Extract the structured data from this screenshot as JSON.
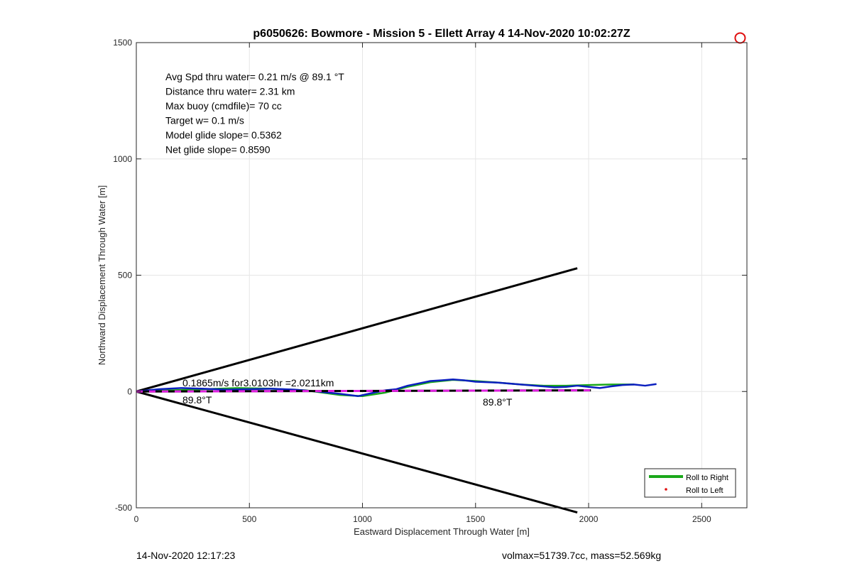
{
  "chart_data": {
    "type": "line",
    "title": "p6050626: Bowmore - Mission 5 - Ellett Array 4 14-Nov-2020 10:02:27Z",
    "xlabel": "Eastward Displacement Through Water [m]",
    "ylabel": "Northward Displacement Through Water [m]",
    "xlim": [
      0,
      2700
    ],
    "ylim": [
      -500,
      1500
    ],
    "xticks": [
      0,
      500,
      1000,
      1500,
      2000,
      2500
    ],
    "yticks": [
      -500,
      0,
      500,
      1000,
      1500
    ],
    "grid": true,
    "annotations": [
      "Avg Spd thru water=  0.21 m/s @  89.1 °T",
      "Distance thru water=  2.31 km",
      "Max buoy (cmdfile)= 70 cc",
      "Target w= 0.1 m/s",
      "Model glide slope= 0.5362",
      "Net glide slope= 0.8590"
    ],
    "segment_label": "0.1865m/s for3.0103hr =2.0211km",
    "heading_label_left": "89.8°T",
    "heading_label_right": "89.8°T",
    "legend": {
      "position": "bottom-right",
      "entries": [
        "Roll to Right",
        "Roll to Left"
      ]
    },
    "glide_cone": {
      "upper": [
        [
          0,
          0
        ],
        [
          1950,
          530
        ]
      ],
      "lower": [
        [
          0,
          0
        ],
        [
          1950,
          -520
        ]
      ]
    },
    "reference_line": [
      [
        0,
        0
      ],
      [
        2010,
        5
      ]
    ],
    "series": [
      {
        "name": "Roll to Right",
        "color": "#1aa81a",
        "x": [
          0,
          150,
          300,
          450,
          600,
          750,
          900,
          1000,
          1100,
          1200,
          1300,
          1400,
          1500,
          1600,
          1700,
          1800,
          1900,
          2000,
          2100,
          2200
        ],
        "y": [
          0,
          5,
          10,
          15,
          12,
          5,
          -15,
          -20,
          -5,
          20,
          40,
          50,
          45,
          38,
          30,
          25,
          25,
          28,
          30,
          30
        ]
      },
      {
        "name": "",
        "color": "#0b1fbf",
        "x": [
          0,
          100,
          200,
          300,
          400,
          500,
          600,
          700,
          800,
          900,
          980,
          1050,
          1100,
          1150,
          1200,
          1250,
          1300,
          1350,
          1400,
          1450,
          1500,
          1600,
          1700,
          1800,
          1850,
          1900,
          1950,
          2000,
          2050,
          2100,
          2150,
          2200,
          2250,
          2300
        ],
        "y": [
          0,
          10,
          15,
          12,
          8,
          10,
          12,
          8,
          0,
          -10,
          -20,
          -5,
          5,
          10,
          25,
          35,
          45,
          48,
          52,
          48,
          42,
          38,
          30,
          22,
          18,
          20,
          25,
          20,
          15,
          22,
          28,
          30,
          25,
          32
        ]
      },
      {
        "name": "Roll to Left",
        "color": "#e01010",
        "x": [
          2670
        ],
        "y": [
          1520
        ]
      }
    ]
  },
  "footer": {
    "timestamp": "14-Nov-2020 12:17:23",
    "mass_info": "volmax=51739.7cc, mass=52.569kg"
  }
}
